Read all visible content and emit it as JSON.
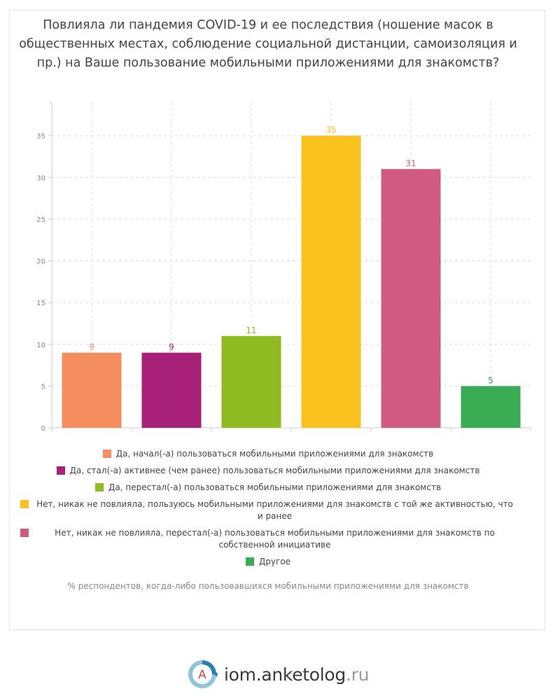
{
  "title": "Повлияла ли пандемия COVID-19 и ее последствия (ношение масок в общественных местах, соблюдение социальной дистанции, самоизоляция и пр.) на Ваше пользование мобильными приложениями для знакомств?",
  "footnote": "% респондентов, когда-либо пользовавшихся мобильными приложениями для знакомств",
  "brand": {
    "name": "iom.anketolog",
    "tld": ".ru",
    "logo_letter": "A",
    "logo_icon": "anketolog-logo-icon"
  },
  "chart_data": {
    "type": "bar",
    "title": "Повлияла ли пандемия COVID-19 и ее последствия (ношение масок в общественных местах, соблюдение социальной дистанции, самоизоляция и пр.) на Ваше пользование мобильными приложениями для знакомств?",
    "xlabel": "",
    "ylabel": "",
    "ylim": [
      0,
      39
    ],
    "yticks": [
      0,
      5,
      10,
      15,
      20,
      25,
      30,
      35
    ],
    "grid": true,
    "legend_position": "bottom",
    "categories": [
      "Да, начал(-а) пользоваться мобильными приложениями для знакомств",
      "Да, стал(-а) активнее (чем ранее) пользоваться мобильными приложениями для знакомств",
      "Да, перестал(-а) пользоваться мобильными приложениями для знакомств",
      "Нет, никак не повлияла, пользуюсь мобильными приложениями для знакомств с той же активностью, что и ранее",
      "Нет, никак не повлияла, перестал(-а) пользоваться мобильными приложениями для знакомств по собственной инициативе",
      "Другое"
    ],
    "values": [
      9,
      9,
      11,
      35,
      31,
      5
    ],
    "colors": [
      "#f68d5f",
      "#a62177",
      "#8fba21",
      "#fac21f",
      "#cf5b83",
      "#3aac53"
    ],
    "label_colors": [
      "#f1905f",
      "#a62177",
      "#8fba21",
      "#f4c02a",
      "#cf5b83",
      "#3a9a4f"
    ]
  }
}
